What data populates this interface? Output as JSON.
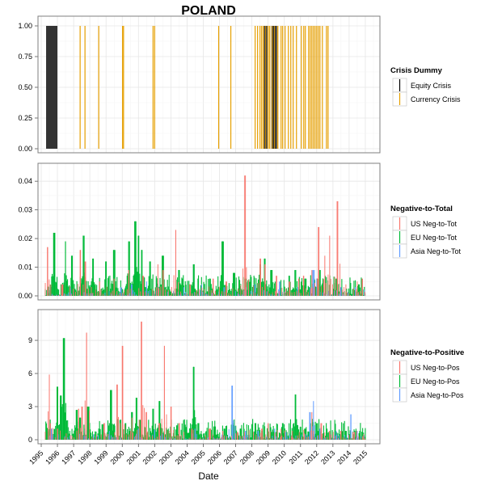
{
  "chart_data": {
    "title": "POLAND",
    "xlabel": "Date",
    "x_ticks": [
      "1995",
      "1996",
      "1997",
      "1998",
      "1999",
      "2000",
      "2001",
      "2002",
      "2003",
      "2004",
      "2005",
      "2006",
      "2007",
      "2008",
      "2009",
      "2010",
      "2011",
      "2012",
      "2013",
      "2014",
      "2015"
    ],
    "x_range": [
      1994.8,
      2015.9
    ],
    "panels": [
      {
        "type": "bar",
        "legend_title": "Crisis Dummy",
        "y_ticks": [
          "0.00",
          "0.25",
          "0.50",
          "0.75",
          "1.00"
        ],
        "ylim": [
          0,
          1
        ],
        "series": [
          {
            "name": "Equity Crisis",
            "color": "#000000",
            "spans": [
              [
                1995.3,
                1996.0
              ],
              [
                2008.75,
                2008.95
              ],
              [
                2009.2,
                2009.55
              ]
            ]
          },
          {
            "name": "Currency Crisis",
            "color": "#E69F00",
            "values_at": [
              1997.4,
              1997.7,
              1998.55,
              2000.02,
              2000.08,
              2001.9,
              2002.0,
              2005.95,
              2006.7,
              2008.2,
              2008.35,
              2008.5,
              2008.6,
              2008.7,
              2008.85,
              2009.0,
              2009.1,
              2009.25,
              2009.4,
              2009.6,
              2009.8,
              2009.9,
              2010.05,
              2010.25,
              2010.4,
              2010.55,
              2010.75,
              2011.05,
              2011.2,
              2011.3,
              2011.5,
              2011.6,
              2011.7,
              2011.8,
              2011.9,
              2012.0,
              2012.1,
              2012.2,
              2012.35,
              2012.6,
              2012.7
            ]
          }
        ]
      },
      {
        "type": "bar",
        "legend_title": "Negative-to-Total",
        "y_ticks": [
          "0.00",
          "0.01",
          "0.02",
          "0.03",
          "0.04"
        ],
        "ylim": [
          0,
          0.044
        ],
        "series": [
          {
            "name": "US Neg-to-Tot",
            "color": "#F8766D",
            "peaks": [
              [
                1995.4,
                0.017
              ],
              [
                1996.3,
                0.004
              ],
              [
                1997.4,
                0.016
              ],
              [
                1997.7,
                0.012
              ],
              [
                1998.6,
                0.005
              ],
              [
                1999.5,
                0.006
              ],
              [
                2000.4,
                0.009
              ],
              [
                2001.3,
                0.007
              ],
              [
                2002.2,
                0.011
              ],
              [
                2002.5,
                0.009
              ],
              [
                2003.3,
                0.023
              ],
              [
                2004.2,
                0.004
              ],
              [
                2005.6,
                0.006
              ],
              [
                2006.4,
                0.005
              ],
              [
                2007.6,
                0.042
              ],
              [
                2008.5,
                0.013
              ],
              [
                2008.8,
                0.011
              ],
              [
                2009.5,
                0.007
              ],
              [
                2010.3,
                0.005
              ],
              [
                2010.9,
                0.006
              ],
              [
                2011.2,
                0.007
              ],
              [
                2011.7,
                0.009
              ],
              [
                2012.1,
                0.024
              ],
              [
                2012.5,
                0.014
              ],
              [
                2012.8,
                0.021
              ],
              [
                2013.3,
                0.033
              ],
              [
                2013.8,
                0.004
              ],
              [
                2014.5,
                0.005
              ],
              [
                2014.8,
                0.006
              ]
            ]
          },
          {
            "name": "EU Neg-to-Tot",
            "color": "#00BA38",
            "peaks": [
              [
                1995.8,
                0.022
              ],
              [
                1996.5,
                0.019
              ],
              [
                1996.9,
                0.014
              ],
              [
                1997.6,
                0.021
              ],
              [
                1998.2,
                0.013
              ],
              [
                1999.0,
                0.012
              ],
              [
                1999.5,
                0.016
              ],
              [
                2000.4,
                0.019
              ],
              [
                2000.8,
                0.026
              ],
              [
                2001.0,
                0.021
              ],
              [
                2001.2,
                0.016
              ],
              [
                2001.7,
                0.012
              ],
              [
                2002.5,
                0.014
              ],
              [
                2003.5,
                0.009
              ],
              [
                2004.4,
                0.011
              ],
              [
                2005.4,
                0.006
              ],
              [
                2006.2,
                0.019
              ],
              [
                2006.9,
                0.008
              ],
              [
                2007.6,
                0.006
              ],
              [
                2008.5,
                0.011
              ],
              [
                2008.8,
                0.013
              ],
              [
                2009.2,
                0.009
              ],
              [
                2010.3,
                0.007
              ],
              [
                2010.7,
                0.009
              ],
              [
                2011.3,
                0.006
              ],
              [
                2012.2,
                0.009
              ],
              [
                2013.2,
                0.006
              ],
              [
                2014.6,
                0.004
              ]
            ]
          },
          {
            "name": "Asia Neg-to-Tot",
            "color": "#619CFF",
            "peaks": [
              [
                1995.5,
                0.003
              ],
              [
                1996.8,
                0.003
              ],
              [
                1999.9,
                0.003
              ],
              [
                2000.6,
                0.004
              ],
              [
                2001.5,
                0.005
              ],
              [
                2002.2,
                0.004
              ],
              [
                2003.8,
                0.003
              ],
              [
                2004.9,
                0.004
              ],
              [
                2006.3,
                0.003
              ],
              [
                2007.6,
                0.003
              ],
              [
                2008.2,
                0.004
              ],
              [
                2009.7,
                0.005
              ],
              [
                2010.8,
                0.003
              ],
              [
                2011.6,
                0.003
              ],
              [
                2011.8,
                0.009
              ],
              [
                2012.0,
                0.006
              ],
              [
                2013.5,
                0.003
              ],
              [
                2014.4,
                0.003
              ]
            ]
          }
        ]
      },
      {
        "type": "bar",
        "legend_title": "Negative-to-Positive",
        "y_ticks": [
          "0",
          "3",
          "6",
          "9"
        ],
        "ylim": [
          0,
          11.2
        ],
        "series": [
          {
            "name": "US Neg-to-Pos",
            "color": "#F8766D",
            "peaks": [
              [
                1995.5,
                5.9
              ],
              [
                1996.0,
                1.0
              ],
              [
                1997.3,
                2.8
              ],
              [
                1997.5,
                3.0
              ],
              [
                1997.8,
                9.7
              ],
              [
                1998.9,
                1.5
              ],
              [
                1999.7,
                5.0
              ],
              [
                2000.0,
                8.5
              ],
              [
                2000.6,
                2.0
              ],
              [
                2001.2,
                10.7
              ],
              [
                2001.5,
                2.5
              ],
              [
                2002.3,
                1.5
              ],
              [
                2002.6,
                8.5
              ],
              [
                2003.0,
                3.0
              ],
              [
                2003.5,
                1.5
              ],
              [
                2004.3,
                1.0
              ],
              [
                2005.4,
                1.0
              ],
              [
                2006.2,
                0.8
              ],
              [
                2007.1,
                0.7
              ],
              [
                2008.6,
                1.0
              ],
              [
                2009.0,
                1.5
              ],
              [
                2009.8,
                1.0
              ],
              [
                2010.5,
                0.8
              ],
              [
                2011.2,
                0.9
              ],
              [
                2011.7,
                2.5
              ],
              [
                2012.3,
                1.5
              ],
              [
                2012.8,
                0.8
              ],
              [
                2013.5,
                0.8
              ],
              [
                2014.3,
                0.7
              ],
              [
                2014.9,
                0.5
              ]
            ]
          },
          {
            "name": "EU Neg-to-Pos",
            "color": "#00BA38",
            "peaks": [
              [
                1996.0,
                4.8
              ],
              [
                1996.2,
                4.0
              ],
              [
                1996.4,
                9.2
              ],
              [
                1997.2,
                2.7
              ],
              [
                1997.4,
                2.0
              ],
              [
                1997.9,
                3.0
              ],
              [
                1998.8,
                1.4
              ],
              [
                1999.3,
                4.5
              ],
              [
                2000.2,
                1.5
              ],
              [
                2000.6,
                2.5
              ],
              [
                2000.9,
                3.8
              ],
              [
                2001.1,
                1.8
              ],
              [
                2001.9,
                2.8
              ],
              [
                2002.3,
                3.5
              ],
              [
                2003.4,
                1.3
              ],
              [
                2004.4,
                6.6
              ],
              [
                2004.7,
                1.5
              ],
              [
                2005.7,
                1.2
              ],
              [
                2006.3,
                1.0
              ],
              [
                2007.3,
                1.0
              ],
              [
                2008.2,
                1.5
              ],
              [
                2008.6,
                0.8
              ],
              [
                2009.9,
                1.5
              ],
              [
                2010.7,
                4.1
              ],
              [
                2011.3,
                1.0
              ],
              [
                2012.0,
                1.5
              ],
              [
                2012.6,
                1.0
              ],
              [
                2013.8,
                0.8
              ],
              [
                2014.3,
                0.5
              ]
            ]
          },
          {
            "name": "Asia Neg-to-Pos",
            "color": "#619CFF",
            "peaks": [
              [
                1995.6,
                1.0
              ],
              [
                1997.7,
                1.0
              ],
              [
                1999.2,
                0.8
              ],
              [
                2001.0,
                1.0
              ],
              [
                2002.0,
                0.9
              ],
              [
                2004.5,
                1.0
              ],
              [
                2006.8,
                4.9
              ],
              [
                2007.6,
                0.8
              ],
              [
                2008.4,
                0.8
              ],
              [
                2009.4,
                1.0
              ],
              [
                2010.1,
                0.7
              ],
              [
                2011.6,
                2.5
              ],
              [
                2011.8,
                3.5
              ],
              [
                2012.2,
                1.0
              ],
              [
                2013.2,
                0.8
              ],
              [
                2014.1,
                2.3
              ],
              [
                2014.5,
                0.8
              ]
            ]
          }
        ]
      }
    ]
  }
}
